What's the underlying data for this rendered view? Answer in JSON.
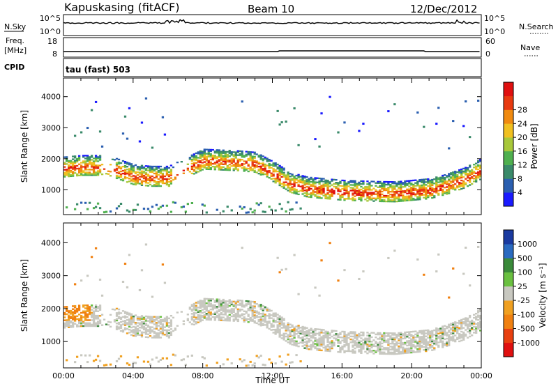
{
  "header": {
    "station": "Kapuskasing (fitACF)",
    "beam": "Beam 10",
    "date": "12/Dec/2012"
  },
  "strips": {
    "nsky_label": "N.Sky",
    "nsky_ticks": [
      "10^5",
      "10^0"
    ],
    "nsearch_label": "N.Search",
    "freq_label": "Freq.",
    "freq_unit": "[MHz]",
    "freq_ticks": [
      "18",
      "8"
    ],
    "nave_label": "Nave",
    "nave_ticks": [
      "60",
      "0"
    ],
    "cpid_label": "CPID",
    "cpid_value": "tau (fast) 503"
  },
  "chart_data": [
    {
      "type": "heatmap",
      "name": "power",
      "ylabel": "Slant Range [km]",
      "ylim": [
        200,
        4600
      ],
      "yticks": [
        "1000",
        "2000",
        "3000",
        "4000"
      ],
      "ytick_values": [
        1000,
        2000,
        3000,
        4000
      ],
      "xlim": [
        0,
        24
      ],
      "colorbar_label": "Power [dB]",
      "colorbar_ticks": [
        "4",
        "8",
        "12",
        "16",
        "20",
        "24",
        "28"
      ],
      "colorbar_colors": [
        "#1a1aff",
        "#2b5fb0",
        "#3a8a6a",
        "#4fb04f",
        "#a8c83a",
        "#f0c020",
        "#f08a10",
        "#e83a10",
        "#e01010"
      ],
      "echo_band": [
        [
          0.0,
          1650
        ],
        [
          1.0,
          1700
        ],
        [
          2.0,
          1700
        ],
        [
          3.0,
          1600
        ],
        [
          4.0,
          1400
        ],
        [
          5.0,
          1350
        ],
        [
          6.0,
          1350
        ],
        [
          8.0,
          1900
        ],
        [
          10.0,
          1850
        ],
        [
          11.0,
          1800
        ],
        [
          12.0,
          1500
        ],
        [
          13.0,
          1150
        ],
        [
          14.0,
          1000
        ],
        [
          15.0,
          950
        ],
        [
          16.0,
          900
        ],
        [
          17.0,
          880
        ],
        [
          18.0,
          860
        ],
        [
          19.0,
          850
        ],
        [
          20.0,
          900
        ],
        [
          21.0,
          950
        ],
        [
          22.0,
          1100
        ],
        [
          23.0,
          1300
        ],
        [
          24.0,
          1600
        ]
      ]
    },
    {
      "type": "heatmap",
      "name": "velocity",
      "ylabel": "Slant Range [km]",
      "ylim": [
        200,
        4600
      ],
      "yticks": [
        "1000",
        "2000",
        "3000",
        "4000"
      ],
      "ytick_values": [
        1000,
        2000,
        3000,
        4000
      ],
      "xlim": [
        0,
        24
      ],
      "xticks": [
        "00:00",
        "04:00",
        "08:00",
        "12:00",
        "16:00",
        "20:00",
        "00:00"
      ],
      "xlabel": "Time UT",
      "colorbar_label": "Velocity [m s⁻¹]",
      "colorbar_ticks": [
        "1000",
        "500",
        "100",
        "25",
        "-25",
        "-100",
        "-500",
        "-1000"
      ],
      "colorbar_colors": [
        "#1a3aa0",
        "#2a6ac0",
        "#3a8a3a",
        "#6ac040",
        "#c8c8c0",
        "#f0a020",
        "#f08010",
        "#e84010",
        "#e01010"
      ]
    }
  ]
}
